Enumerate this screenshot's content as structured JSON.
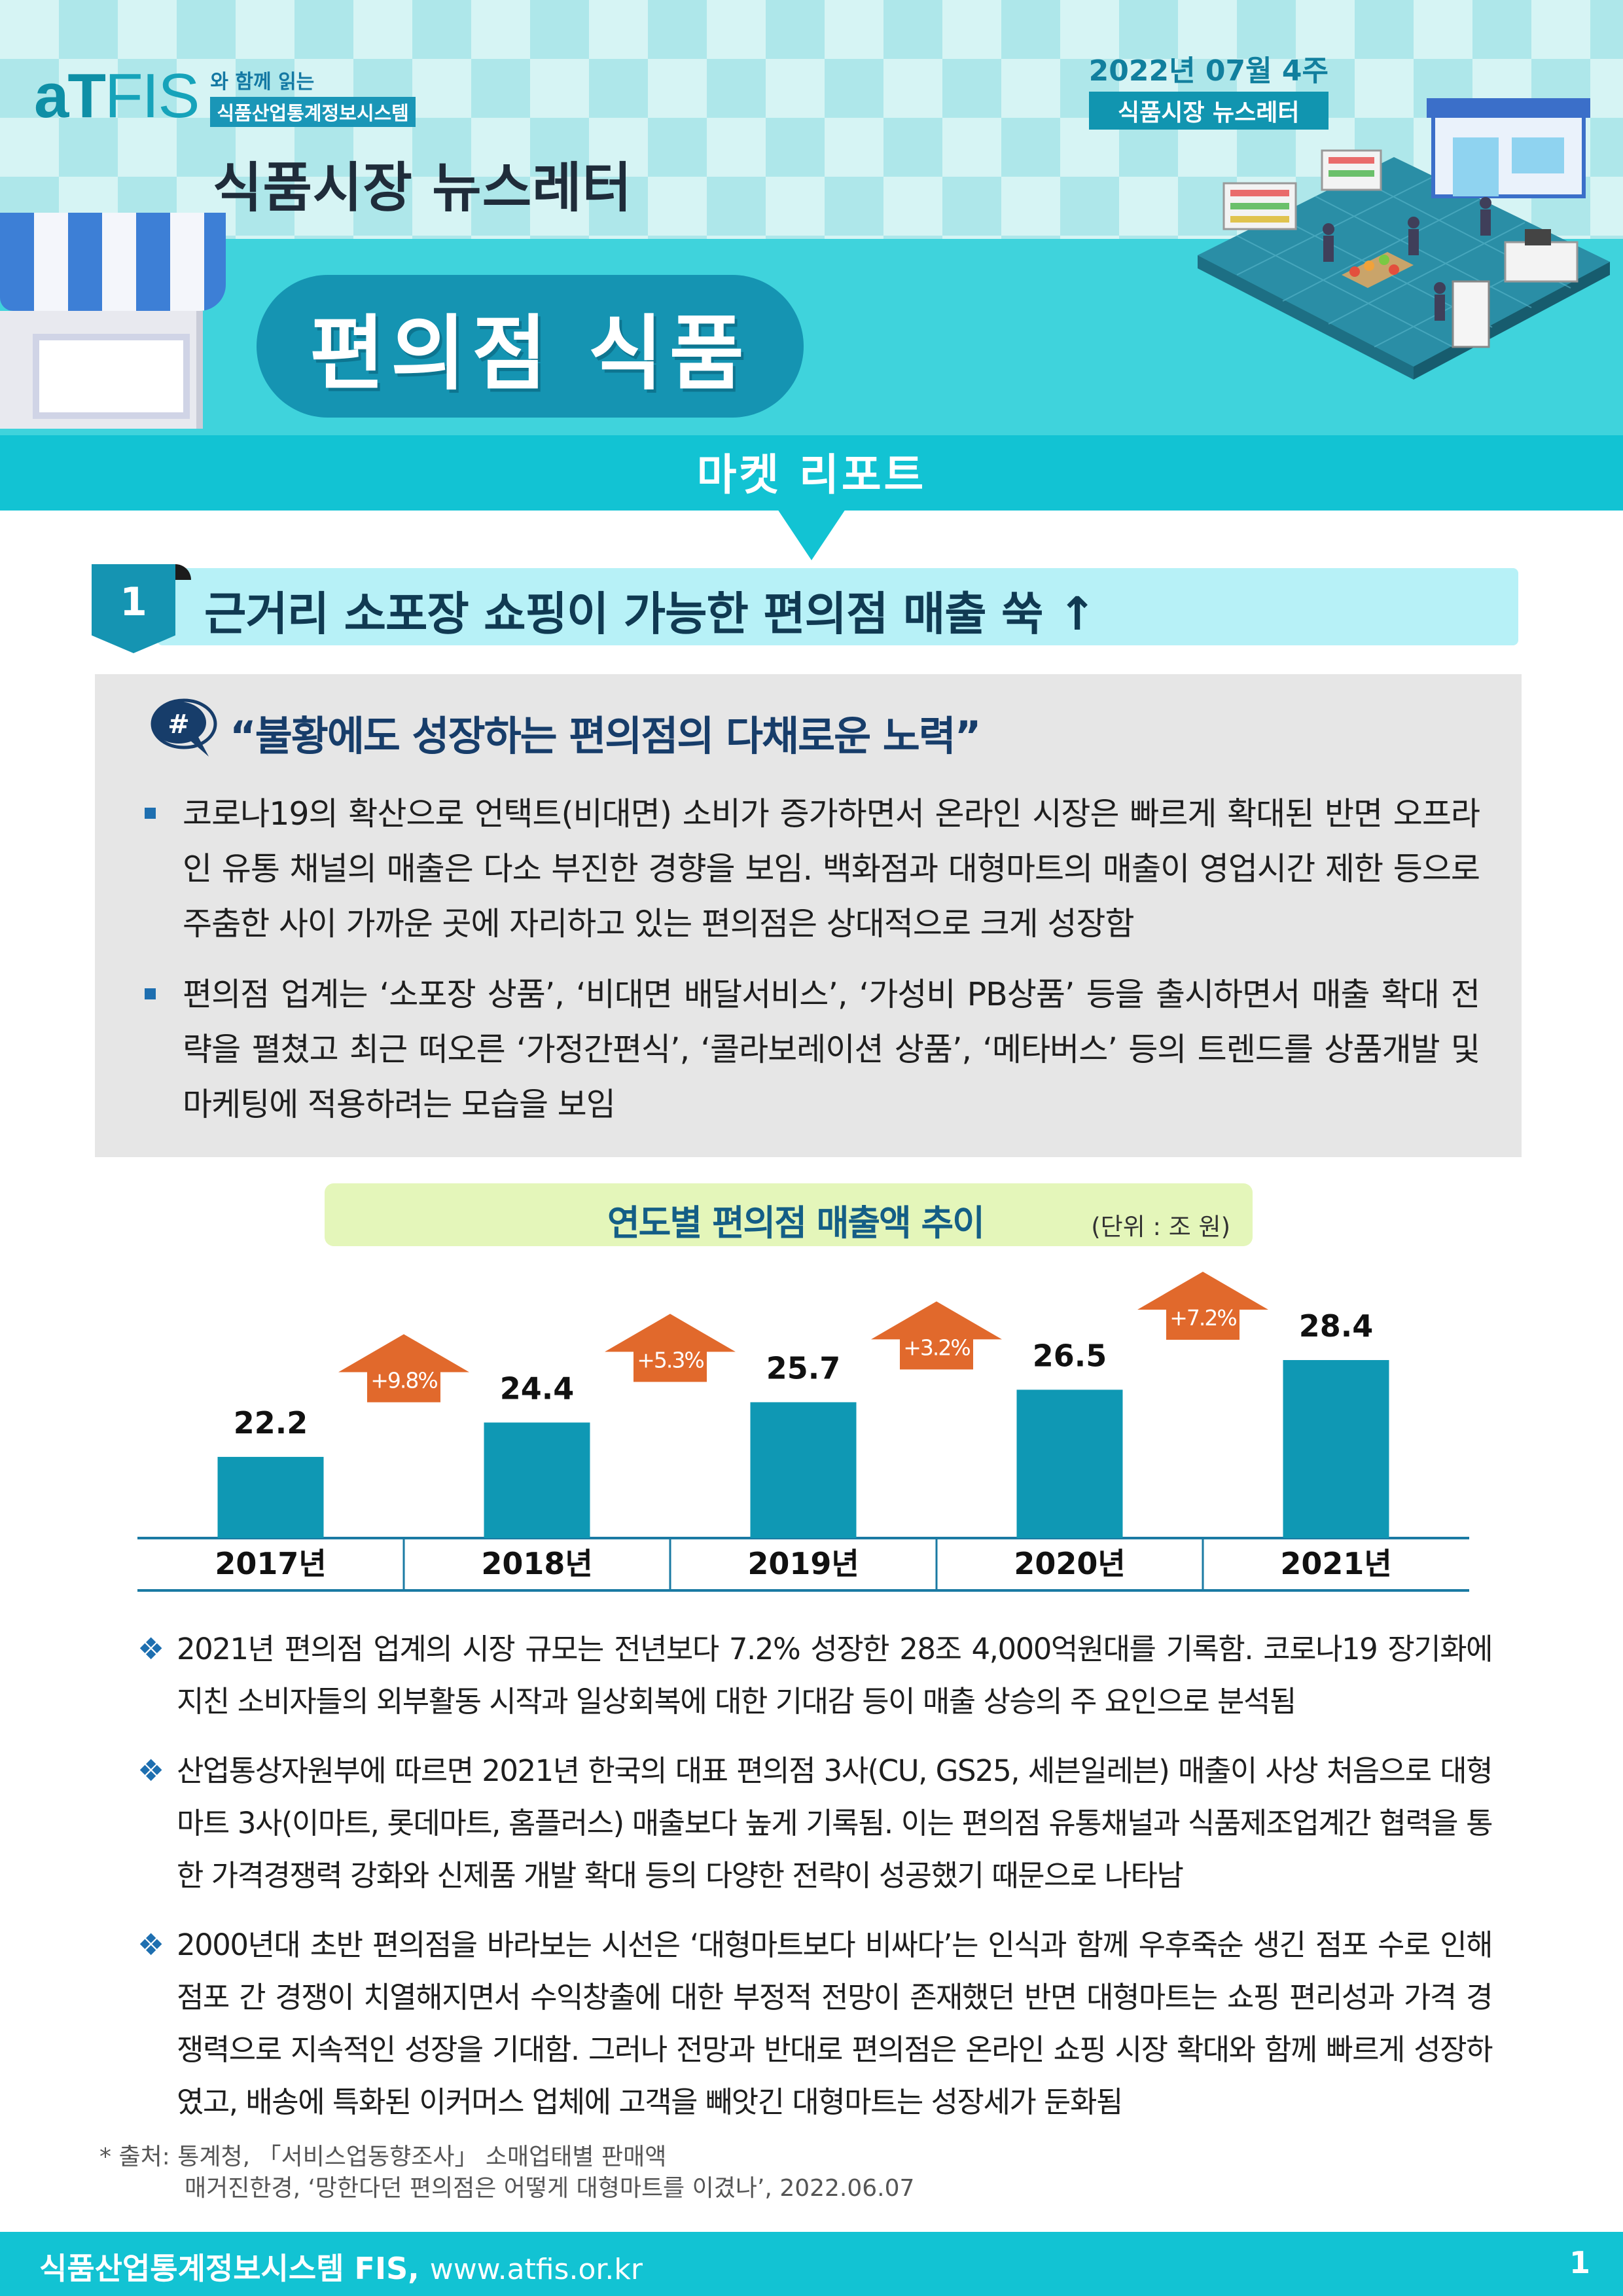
{
  "header": {
    "logo_text": "aTFIS",
    "logo_sub_1": "와 함께 읽는",
    "logo_sub_2": "식품산업통계정보시스템",
    "issue_date": "2022년 07월 4주",
    "issue_label": "식품시장 뉴스레터",
    "newsletter_title": "식품시장 뉴스레터",
    "topic": "편의점 식품",
    "report_label": "마켓 리포트"
  },
  "section": {
    "number": "1",
    "title": "근거리 소포장 쇼핑이 가능한 편의점 매출 쑥 ↑"
  },
  "summary": {
    "icon_glyph": "#",
    "title": "“불황에도 성장하는 편의점의 다채로운 노력”",
    "bullets": [
      "코로나19의 확산으로 언택트(비대면) 소비가 증가하면서 온라인 시장은 빠르게 확대된 반면 오프라인 유통 채널의 매출은 다소 부진한 경향을 보임. 백화점과 대형마트의 매출이 영업시간 제한 등으로 주춤한 사이 가까운 곳에 자리하고 있는 편의점은 상대적으로 크게 성장함",
      "편의점 업계는 ‘소포장 상품’, ‘비대면 배달서비스’, ‘가성비 PB상품’ 등을 출시하면서 매출 확대 전략을 펼쳤고 최근 떠오른 ‘가정간편식’, ‘콜라보레이션 상품’, ‘메타버스’ 등의 트렌드를 상품개발 및 마케팅에 적용하려는 모습을 보임"
    ]
  },
  "chart_data": {
    "type": "bar",
    "title": "연도별 편의점 매출액 추이",
    "unit": "(단위 : 조 원)",
    "categories": [
      "2017년",
      "2018년",
      "2019년",
      "2020년",
      "2021년"
    ],
    "values": [
      22.2,
      24.4,
      25.7,
      26.5,
      28.4
    ],
    "value_labels": [
      "22.2",
      "24.4",
      "25.7",
      "26.5",
      "28.4"
    ],
    "growth_labels": [
      "+9.8%",
      "+5.3%",
      "+3.2%",
      "+7.2%"
    ],
    "bar_color": "#0f98b4",
    "arrow_color": "#e1692c",
    "axis_color": "#1a7aa3"
  },
  "notes": [
    "2021년 편의점 업계의 시장 규모는 전년보다 7.2% 성장한 28조 4,000억원대를 기록함. 코로나19 장기화에 지친 소비자들의 외부활동 시작과 일상회복에 대한 기대감 등이 매출 상승의 주 요인으로 분석됨",
    "산업통상자원부에 따르면 2021년 한국의 대표 편의점 3사(CU, GS25, 세븐일레븐) 매출이 사상 처음으로 대형마트 3사(이마트, 롯데마트, 홈플러스) 매출보다 높게 기록됨. 이는 편의점 유통채널과 식품제조업계간 협력을 통한 가격경쟁력 강화와 신제품 개발 확대 등의 다양한 전략이 성공했기 때문으로 나타남",
    "2000년대 초반 편의점을 바라보는 시선은 ‘대형마트보다 비싸다’는 인식과 함께 우후죽순 생긴 점포 수로 인해 점포 간 경쟁이 치열해지면서 수익창출에 대한 부정적 전망이 존재했던 반면 대형마트는 쇼핑 편리성과 가격 경쟁력으로 지속적인 성장을 기대함. 그러나 전망과 반대로 편의점은 온라인 쇼핑 시장 확대와 함께 빠르게 성장하였고, 배송에 특화된 이커머스 업체에 고객을 빼앗긴 대형마트는 성장세가 둔화됨"
  ],
  "note_bullet": "❖",
  "source": {
    "line1": "* 출처: 통계청, 「서비스업동향조사」 소매업태별 판매액",
    "line2": "매거진한경, ‘망한다던 편의점은 어떻게 대형마트를 이겼나’, 2022.06.07"
  },
  "footer": {
    "org": "식품산업통계정보시스템 FIS,",
    "url": "www.atfis.or.kr",
    "page": "1"
  }
}
